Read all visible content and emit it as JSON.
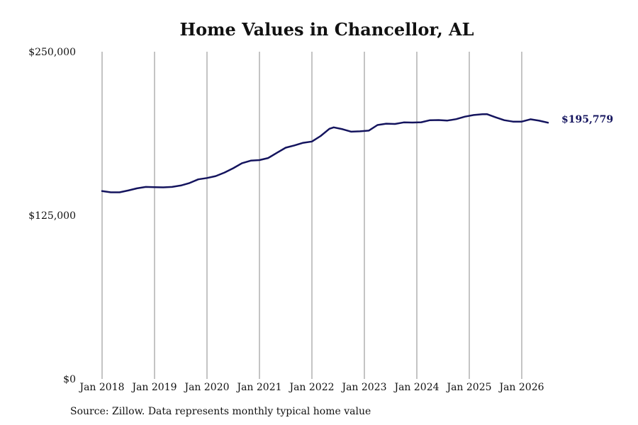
{
  "chart_data": {
    "type": "line",
    "title": "Home Values in Chancellor, AL",
    "xlabel": "",
    "ylabel": "",
    "ylim": [
      0,
      250000
    ],
    "y_ticks": [
      {
        "value": 0,
        "label": "$0"
      },
      {
        "value": 125000,
        "label": "$125,000"
      },
      {
        "value": 250000,
        "label": "$250,000"
      }
    ],
    "x_ticks": [
      {
        "value": "2018-01",
        "label": "Jan 2018"
      },
      {
        "value": "2019-01",
        "label": "Jan 2019"
      },
      {
        "value": "2020-01",
        "label": "Jan 2020"
      },
      {
        "value": "2021-01",
        "label": "Jan 2021"
      },
      {
        "value": "2022-01",
        "label": "Jan 2022"
      },
      {
        "value": "2023-01",
        "label": "Jan 2023"
      },
      {
        "value": "2024-01",
        "label": "Jan 2024"
      },
      {
        "value": "2025-01",
        "label": "Jan 2025"
      },
      {
        "value": "2026-01",
        "label": "Jan 2026"
      }
    ],
    "vertical_gridlines": true,
    "series": [
      {
        "color": "#14145e",
        "end_label": "$195,779",
        "points": [
          [
            "2018-01",
            143500
          ],
          [
            "2018-03",
            142600
          ],
          [
            "2018-05",
            142600
          ],
          [
            "2018-07",
            144000
          ],
          [
            "2018-09",
            145600
          ],
          [
            "2018-11",
            146700
          ],
          [
            "2019-01",
            146500
          ],
          [
            "2019-03",
            146400
          ],
          [
            "2019-05",
            146700
          ],
          [
            "2019-07",
            147800
          ],
          [
            "2019-09",
            149700
          ],
          [
            "2019-11",
            152500
          ],
          [
            "2020-01",
            153500
          ],
          [
            "2020-03",
            155000
          ],
          [
            "2020-05",
            157700
          ],
          [
            "2020-07",
            161000
          ],
          [
            "2020-09",
            164800
          ],
          [
            "2020-11",
            166800
          ],
          [
            "2021-01",
            167200
          ],
          [
            "2021-03",
            168800
          ],
          [
            "2021-05",
            172800
          ],
          [
            "2021-07",
            176700
          ],
          [
            "2021-09",
            178400
          ],
          [
            "2021-11",
            180400
          ],
          [
            "2022-01",
            181400
          ],
          [
            "2022-03",
            185600
          ],
          [
            "2022-05",
            191100
          ],
          [
            "2022-06",
            192200
          ],
          [
            "2022-08",
            190800
          ],
          [
            "2022-10",
            188900
          ],
          [
            "2022-12",
            189200
          ],
          [
            "2023-02",
            189700
          ],
          [
            "2023-04",
            194000
          ],
          [
            "2023-06",
            195000
          ],
          [
            "2023-08",
            194800
          ],
          [
            "2023-10",
            196000
          ],
          [
            "2023-12",
            195900
          ],
          [
            "2024-02",
            196100
          ],
          [
            "2024-04",
            197700
          ],
          [
            "2024-06",
            197800
          ],
          [
            "2024-08",
            197400
          ],
          [
            "2024-10",
            198500
          ],
          [
            "2024-12",
            200400
          ],
          [
            "2025-02",
            201600
          ],
          [
            "2025-04",
            202200
          ],
          [
            "2025-05",
            202300
          ],
          [
            "2025-07",
            199900
          ],
          [
            "2025-09",
            197700
          ],
          [
            "2025-11",
            196600
          ],
          [
            "2026-01",
            196600
          ],
          [
            "2026-03",
            198400
          ],
          [
            "2026-05",
            197300
          ],
          [
            "2026-07",
            195779
          ]
        ]
      }
    ]
  },
  "source_note": "Source: Zillow. Data represents monthly typical home value"
}
